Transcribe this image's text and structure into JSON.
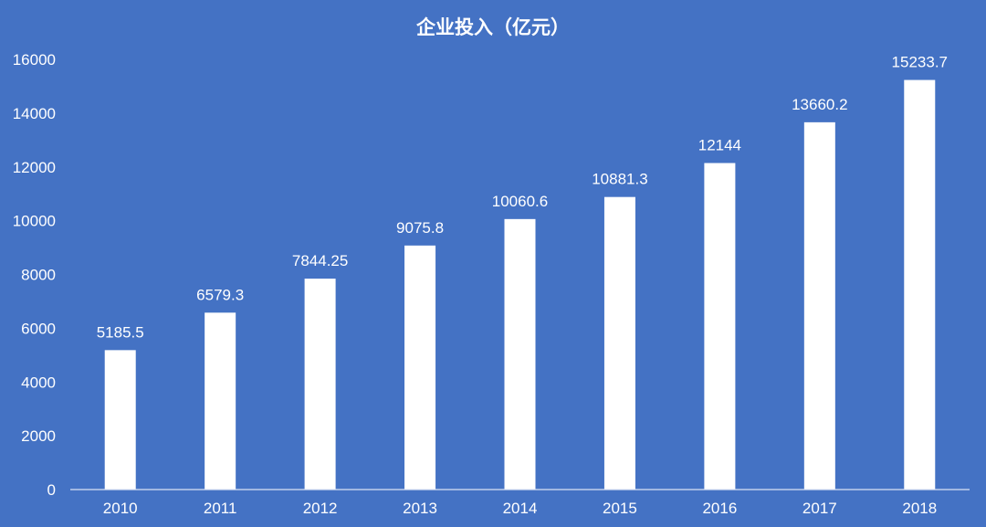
{
  "chart_data": {
    "type": "bar",
    "title": "企业投入（亿元）",
    "categories": [
      "2010",
      "2011",
      "2012",
      "2013",
      "2014",
      "2015",
      "2016",
      "2017",
      "2018"
    ],
    "values": [
      5185.5,
      6579.3,
      7844.25,
      9075.8,
      10060.6,
      10881.3,
      12144,
      13660.2,
      15233.7
    ],
    "data_labels": [
      "5185.5",
      "6579.3",
      "7844.25",
      "9075.8",
      "10060.6",
      "10881.3",
      "12144",
      "13660.2",
      "15233.7"
    ],
    "ylim": [
      0,
      16000
    ],
    "yticks": [
      "0",
      "2000",
      "4000",
      "6000",
      "8000",
      "10000",
      "12000",
      "14000",
      "16000"
    ],
    "xlabel": "",
    "ylabel": "",
    "grid": false,
    "legend": "none",
    "colors": {
      "background": "#4472C4",
      "bar": "#FFFFFF",
      "text": "#FFFFFF"
    }
  }
}
